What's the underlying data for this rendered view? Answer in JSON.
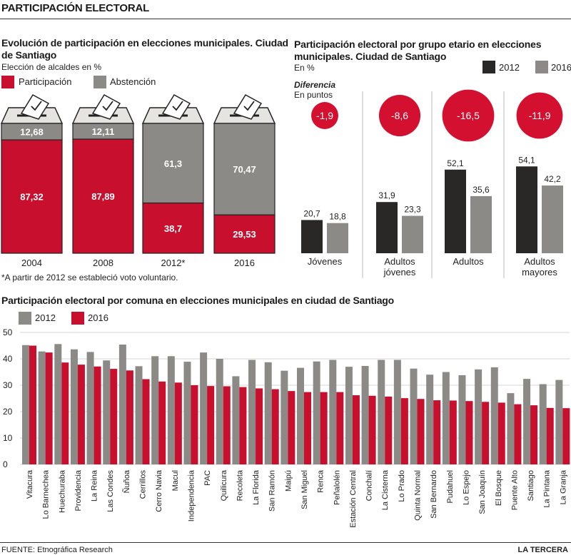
{
  "header": {
    "title": "PARTICIPACIÓN ELECTORAL"
  },
  "footer": {
    "source": "FUENTE: Etnográfica Research",
    "brand": "LA TERCERA"
  },
  "colors": {
    "participation": "#c8102e",
    "abstention": "#8c8a87",
    "y2012_dark": "#2a2826",
    "y2016_gray": "#8c8a87",
    "circle": "#d3102f"
  },
  "panel1": {
    "title_line1": "Evolución de participación en elecciones municipales. Ciudad",
    "title_line2": "de Santiago",
    "subtitle": "Elección de alcaldes en %",
    "legend": {
      "participation": "Participación",
      "abstention": "Abstención"
    },
    "footnote": "*A partir de 2012 se estableció voto voluntario."
  },
  "panel2": {
    "title_line1": "Participación electoral por grupo etario en elecciones",
    "title_line2": "municipales. Ciudad de Santiago",
    "unit": "En %",
    "legend": {
      "y2012": "2012",
      "y2016": "2016"
    },
    "diff_title": "Diferencia",
    "diff_unit": "En puntos"
  },
  "panel3": {
    "title": "Participación electoral por comuna en elecciones municipales en ciudad de Santiago",
    "legend": {
      "y2012": "2012",
      "y2016": "2016"
    }
  },
  "chart_data": [
    {
      "type": "bar",
      "stacked": true,
      "categories": [
        "2004",
        "2008",
        "2012*",
        "2016"
      ],
      "series": [
        {
          "name": "Participación",
          "values": [
            87.32,
            87.89,
            38.7,
            29.53
          ],
          "labels": [
            "87,32",
            "87,89",
            "38,7",
            "29,53"
          ]
        },
        {
          "name": "Abstención",
          "values": [
            12.68,
            12.11,
            61.3,
            70.47
          ],
          "labels": [
            "12,68",
            "12,11",
            "61,3",
            "70,47"
          ]
        }
      ],
      "ylim": [
        0,
        100
      ]
    },
    {
      "type": "bar",
      "categories": [
        "Jóvenes",
        "Adultos jóvenes",
        "Adultos",
        "Adultos mayores"
      ],
      "category_lines": [
        [
          "Jóvenes"
        ],
        [
          "Adultos",
          "jóvenes"
        ],
        [
          "Adultos"
        ],
        [
          "Adultos",
          "mayores"
        ]
      ],
      "series": [
        {
          "name": "2012",
          "values": [
            20.7,
            31.9,
            52.1,
            54.1
          ],
          "labels": [
            "20,7",
            "31,9",
            "52,1",
            "54,1"
          ]
        },
        {
          "name": "2016",
          "values": [
            18.8,
            23.3,
            35.6,
            42.2
          ],
          "labels": [
            "18,8",
            "23,3",
            "35,6",
            "42,2"
          ]
        }
      ],
      "difference": {
        "values": [
          -1.9,
          -8.6,
          -16.5,
          -11.9
        ],
        "labels": [
          "-1,9",
          "-8,6",
          "-16,5",
          "-11,9"
        ]
      }
    },
    {
      "type": "bar",
      "categories": [
        "Vitacura",
        "Lo Barnechea",
        "Huechuraba",
        "Providencia",
        "La Reina",
        "Las Condes",
        "Ñuñoa",
        "Cerrillos",
        "Cerro Navia",
        "Macul",
        "Independencia",
        "PAC",
        "Quilicura",
        "Recoleta",
        "La Florida",
        "San Ramón",
        "Maipú",
        "San Miguel",
        "Renca",
        "Peñalolén",
        "Estación Central",
        "Conchalí",
        "La Cisterna",
        "Lo Prado",
        "Quinta Normal",
        "San Bernardo",
        "Pudahuel",
        "Lo Espejo",
        "San Joaquín",
        "El Bosque",
        "Puente Alto",
        "Santiago",
        "La Pintana",
        "La Granja"
      ],
      "series": [
        {
          "name": "2012",
          "values": [
            45.2,
            42.8,
            45.6,
            43.6,
            42.6,
            39.4,
            45.4,
            37.2,
            41.0,
            41.0,
            38.9,
            42.4,
            40.0,
            33.4,
            39.6,
            38.7,
            35.5,
            36.6,
            39.0,
            39.6,
            37.0,
            37.3,
            39.6,
            39.6,
            36.3,
            34.0,
            35.0,
            33.8,
            36.0,
            36.8,
            27.0,
            32.4,
            30.4,
            32.0
          ]
        },
        {
          "name": "2016",
          "values": [
            45.0,
            42.4,
            38.6,
            37.8,
            37.1,
            36.2,
            35.6,
            32.3,
            31.4,
            31.0,
            30.0,
            29.7,
            29.6,
            29.3,
            28.8,
            28.5,
            27.8,
            27.4,
            27.4,
            27.4,
            26.2,
            26.0,
            25.7,
            25.1,
            24.8,
            24.3,
            24.2,
            24.0,
            23.7,
            23.4,
            22.8,
            22.4,
            21.4,
            21.3
          ]
        }
      ],
      "yticks": [
        0,
        10,
        20,
        30,
        40,
        50
      ],
      "ylim": [
        0,
        50
      ]
    }
  ]
}
